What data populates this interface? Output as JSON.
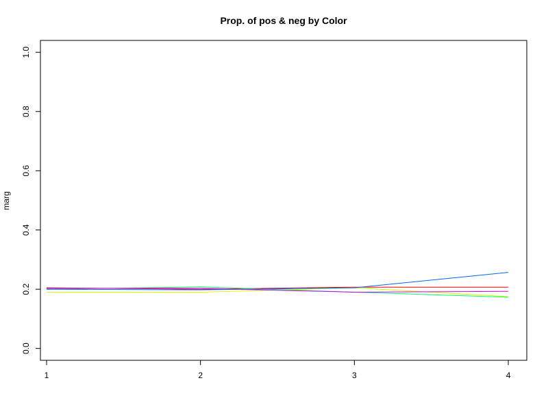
{
  "chart_data": {
    "type": "line",
    "title": "Prop. of pos & neg by Color",
    "xlabel": "",
    "ylabel": "marg",
    "x": [
      1,
      2,
      3,
      4
    ],
    "xlim": [
      0.96,
      4.12
    ],
    "ylim": [
      -0.04,
      1.04
    ],
    "x_ticks": [
      "1",
      "2",
      "3",
      "4"
    ],
    "y_ticks": [
      "0.0",
      "0.2",
      "0.4",
      "0.6",
      "0.8",
      "1.0"
    ],
    "grid": false,
    "legend": "none",
    "series": [
      {
        "color": "#FF0000",
        "values": [
          0.205,
          0.2,
          0.207,
          0.207
        ]
      },
      {
        "color": "#CCFF00",
        "values": [
          0.19,
          0.19,
          0.205,
          0.175
        ]
      },
      {
        "color": "#00FF66",
        "values": [
          0.2,
          0.208,
          0.19,
          0.173
        ]
      },
      {
        "color": "#0066FF",
        "values": [
          0.2,
          0.198,
          0.205,
          0.257
        ]
      },
      {
        "color": "#CC00FF",
        "values": [
          0.203,
          0.203,
          0.19,
          0.193
        ]
      }
    ]
  }
}
